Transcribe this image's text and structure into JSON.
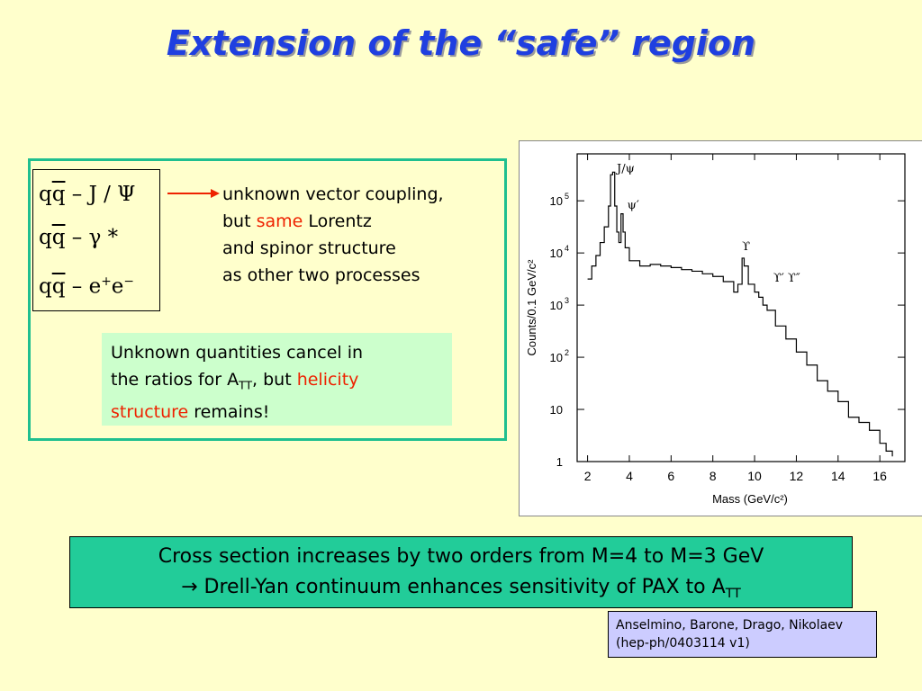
{
  "slide": {
    "title": "Extension of the “safe” region",
    "formulas": [
      {
        "prefix": "q",
        "bar": "q",
        "rest": " – J / Ψ"
      },
      {
        "prefix": "q",
        "bar": "q",
        "rest": " – γ *"
      },
      {
        "prefix": "q",
        "bar": "q",
        "rest_a": " – e",
        "sup_a": "+",
        "rest_b": "e",
        "sup_b": "−"
      }
    ],
    "vector_text": {
      "line1": "unknown vector coupling,",
      "line2_a": "but ",
      "line2_red": "same",
      "line2_b": " Lorentz",
      "line3": "and spinor structure",
      "line4": "as other two processes"
    },
    "cancel_text": {
      "line1": "Unknown quantities cancel in",
      "line2_a": "the ratios for A",
      "line2_sub": "TT",
      "line2_b": ", but ",
      "line2_red": "helicity",
      "line3_red": "structure",
      "line3_b": " remains!"
    },
    "conclusion": {
      "line1": "Cross section increases by two orders from M=4 to M=3 GeV",
      "arrow": "→",
      "line2": " Drell-Yan continuum enhances sensitivity of PAX to A",
      "line2_sub": "TT"
    },
    "reference": {
      "line1": "Anselmino, Barone, Drago, Nikolaev",
      "line2": "(hep-ph/0403114 v1)"
    },
    "colors": {
      "title": "#1f3fe0",
      "background": "#ffffcc",
      "frame": "#1fbf8f",
      "highlight": "#ee2200",
      "conclusion_bg": "#22cc99",
      "cancel_bg": "#ccffcc",
      "reference_bg": "#ccccff"
    }
  },
  "chart_data": {
    "type": "line",
    "xlabel": "Mass (GeV/c²)",
    "ylabel": "Counts/0.1 GeV/c²",
    "xlim": [
      1.5,
      17.2
    ],
    "ylim_log10": [
      0,
      5.9
    ],
    "log_y": true,
    "x_ticks": [
      2,
      4,
      6,
      8,
      10,
      12,
      14,
      16
    ],
    "y_ticks": [
      {
        "exp": 0,
        "label": "1",
        "sup": ""
      },
      {
        "exp": 1,
        "label": "10",
        "sup": ""
      },
      {
        "exp": 2,
        "label": "10",
        "sup": "2"
      },
      {
        "exp": 3,
        "label": "10",
        "sup": "3"
      },
      {
        "exp": 4,
        "label": "10",
        "sup": "4"
      },
      {
        "exp": 5,
        "label": "10",
        "sup": "5"
      }
    ],
    "series": [
      {
        "x": [
          2.0,
          2.2,
          2.4,
          2.6,
          2.8,
          3.0,
          3.1,
          3.2,
          3.3,
          3.4,
          3.5,
          3.6,
          3.7,
          3.8,
          4.0,
          4.5,
          5.0,
          5.5,
          6.0,
          6.5,
          7.0,
          7.5,
          8.0,
          8.5,
          9.0,
          9.2,
          9.4,
          9.5,
          9.7,
          10.0,
          10.2,
          10.4,
          10.6,
          11.0,
          11.5,
          12.0,
          12.5,
          13.0,
          13.5,
          14.0,
          14.5,
          15.0,
          15.5,
          16.0,
          16.3,
          16.6
        ],
        "log10_y": [
          3.5,
          3.75,
          3.95,
          4.2,
          4.5,
          4.9,
          5.5,
          5.55,
          4.9,
          4.4,
          4.2,
          4.75,
          4.4,
          4.1,
          3.85,
          3.75,
          3.78,
          3.75,
          3.72,
          3.68,
          3.65,
          3.6,
          3.55,
          3.45,
          3.25,
          3.4,
          3.9,
          3.75,
          3.4,
          3.25,
          3.15,
          3.0,
          2.9,
          2.6,
          2.35,
          2.1,
          1.85,
          1.55,
          1.35,
          1.15,
          0.85,
          0.75,
          0.6,
          0.35,
          0.2,
          0.1
        ]
      }
    ],
    "annotations": [
      {
        "text": "J/ψ",
        "x": 3.4,
        "log10_y": 5.55
      },
      {
        "text": "ψ′",
        "x": 3.9,
        "log10_y": 4.85
      },
      {
        "text": "ϒ",
        "x": 9.4,
        "log10_y": 4.05
      },
      {
        "text": "ϒ′ ϒ″",
        "x": 10.9,
        "log10_y": 3.45
      }
    ]
  }
}
